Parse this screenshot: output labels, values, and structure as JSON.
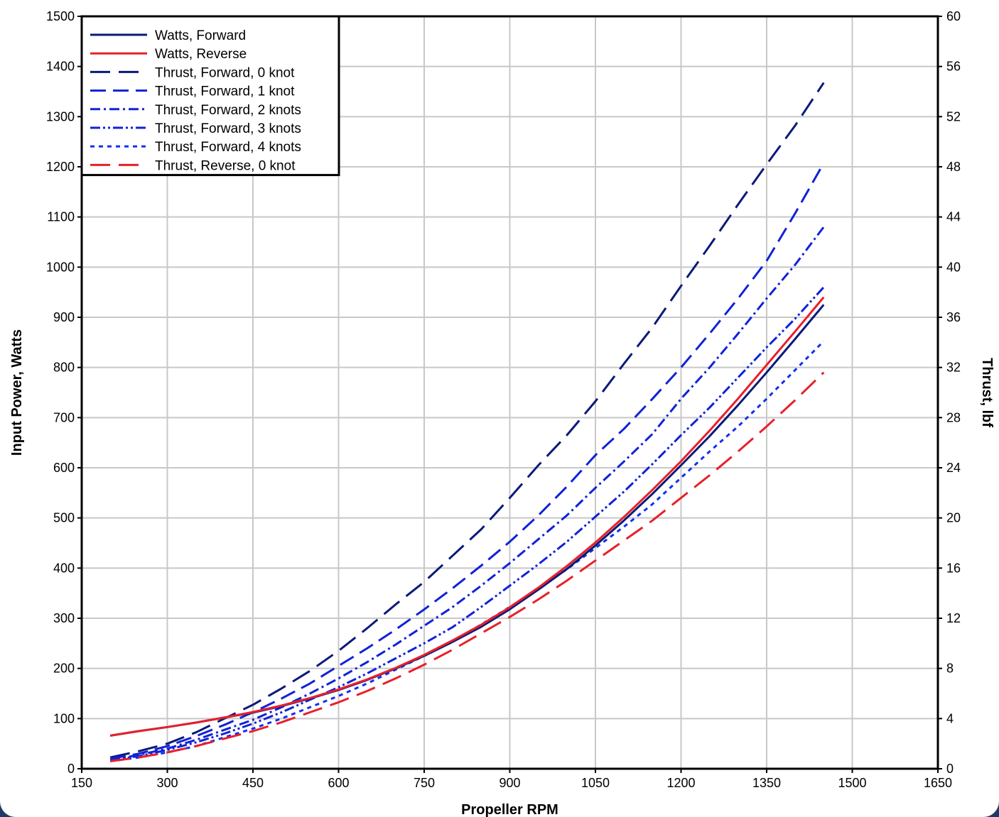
{
  "chart_data": {
    "type": "line",
    "xlabel": "Propeller RPM",
    "ylabel": "Input Power, Watts",
    "y2label": "Thrust, lbf",
    "xlim": [
      150,
      1650
    ],
    "ylim": [
      0,
      1500
    ],
    "y2lim": [
      0,
      60
    ],
    "x_ticks": [
      150,
      300,
      450,
      600,
      750,
      900,
      1050,
      1200,
      1350,
      1500,
      1650
    ],
    "y_ticks": [
      0,
      100,
      200,
      300,
      400,
      500,
      600,
      700,
      800,
      900,
      1000,
      1100,
      1200,
      1300,
      1400,
      1500
    ],
    "y2_ticks": [
      0,
      4,
      8,
      12,
      16,
      20,
      24,
      28,
      32,
      36,
      40,
      44,
      48,
      52,
      56,
      60
    ],
    "grid": true,
    "legend_position": "top-left",
    "x": [
      200,
      250,
      300,
      350,
      400,
      450,
      500,
      550,
      600,
      650,
      700,
      750,
      800,
      850,
      900,
      950,
      1000,
      1050,
      1100,
      1150,
      1200,
      1250,
      1300,
      1350,
      1400,
      1450
    ],
    "series": [
      {
        "name": "Watts, Forward",
        "axis": "left",
        "color": "#0a1a78",
        "dash": "solid",
        "width": 3,
        "values": [
          66,
          75,
          83,
          92,
          102,
          112,
          125,
          140,
          157,
          177,
          200,
          225,
          253,
          283,
          318,
          357,
          398,
          445,
          495,
          548,
          605,
          663,
          725,
          790,
          857,
          925
        ]
      },
      {
        "name": "Watts, Reverse",
        "axis": "left",
        "color": "#e8202a",
        "dash": "solid",
        "width": 3,
        "values": [
          66,
          75,
          83,
          92,
          102,
          113,
          126,
          141,
          158,
          178,
          201,
          227,
          256,
          287,
          322,
          361,
          404,
          451,
          502,
          556,
          613,
          674,
          738,
          805,
          872,
          940
        ]
      },
      {
        "name": "Thrust, Forward, 0 knot",
        "axis": "right",
        "color": "#0a1a78",
        "dash": "28 12",
        "width": 3,
        "values": [
          0.9,
          1.4,
          2.0,
          2.9,
          4.0,
          5.1,
          6.4,
          7.8,
          9.4,
          11.2,
          13.1,
          14.9,
          17.0,
          19.1,
          21.6,
          24.2,
          26.6,
          29.3,
          32.3,
          35.2,
          38.5,
          41.7,
          45.0,
          48.2,
          51.3,
          54.7
        ]
      },
      {
        "name": "Thrust, Forward, 1 knot",
        "axis": "right",
        "color": "#1022d8",
        "dash": "22 10",
        "width": 3,
        "values": [
          0.8,
          1.2,
          1.8,
          2.6,
          3.5,
          4.5,
          5.6,
          6.8,
          8.2,
          9.6,
          11.1,
          12.7,
          14.4,
          16.2,
          18.1,
          20.2,
          22.5,
          25.0,
          27.1,
          29.5,
          32.0,
          34.7,
          37.5,
          40.5,
          44.3,
          48.3
        ]
      },
      {
        "name": "Thrust, Forward, 2 knots",
        "axis": "right",
        "color": "#1022d8",
        "dash": "14 5 3 5",
        "width": 3,
        "values": [
          0.7,
          1.1,
          1.6,
          2.3,
          3.1,
          3.9,
          4.9,
          6.0,
          7.2,
          8.5,
          9.9,
          11.4,
          12.9,
          14.6,
          16.4,
          18.3,
          20.2,
          22.4,
          24.5,
          26.7,
          29.5,
          32.0,
          34.7,
          37.5,
          40.2,
          43.2
        ]
      },
      {
        "name": "Thrust, Forward, 3 knots",
        "axis": "right",
        "color": "#1022d8",
        "dash": "14 4 3 4 3 4",
        "width": 3,
        "values": [
          0.7,
          1.0,
          1.5,
          2.1,
          2.8,
          3.6,
          4.5,
          5.5,
          6.5,
          7.6,
          8.8,
          10.0,
          11.3,
          12.9,
          14.6,
          16.3,
          18.1,
          20.1,
          22.1,
          24.3,
          26.6,
          28.8,
          31.2,
          33.6,
          35.9,
          38.4
        ]
      },
      {
        "name": "Thrust, Forward, 4 knots",
        "axis": "right",
        "color": "#1030f0",
        "dash": "6 6",
        "width": 3,
        "values": [
          0.6,
          0.9,
          1.3,
          1.8,
          2.5,
          3.2,
          4.0,
          4.9,
          5.8,
          6.8,
          7.9,
          9.0,
          10.2,
          11.5,
          12.9,
          14.4,
          15.9,
          17.6,
          19.3,
          21.1,
          23.2,
          25.3,
          27.3,
          29.5,
          31.8,
          34.1
        ]
      },
      {
        "name": "Thrust, Reverse, 0 knot",
        "axis": "right",
        "color": "#e8202a",
        "dash": "28 12",
        "width": 3,
        "values": [
          0.6,
          0.9,
          1.3,
          1.8,
          2.4,
          3.0,
          3.7,
          4.5,
          5.3,
          6.2,
          7.2,
          8.3,
          9.5,
          10.8,
          12.1,
          13.5,
          15.0,
          16.6,
          18.2,
          19.8,
          21.6,
          23.4,
          25.3,
          27.3,
          29.4,
          31.6
        ]
      }
    ]
  }
}
